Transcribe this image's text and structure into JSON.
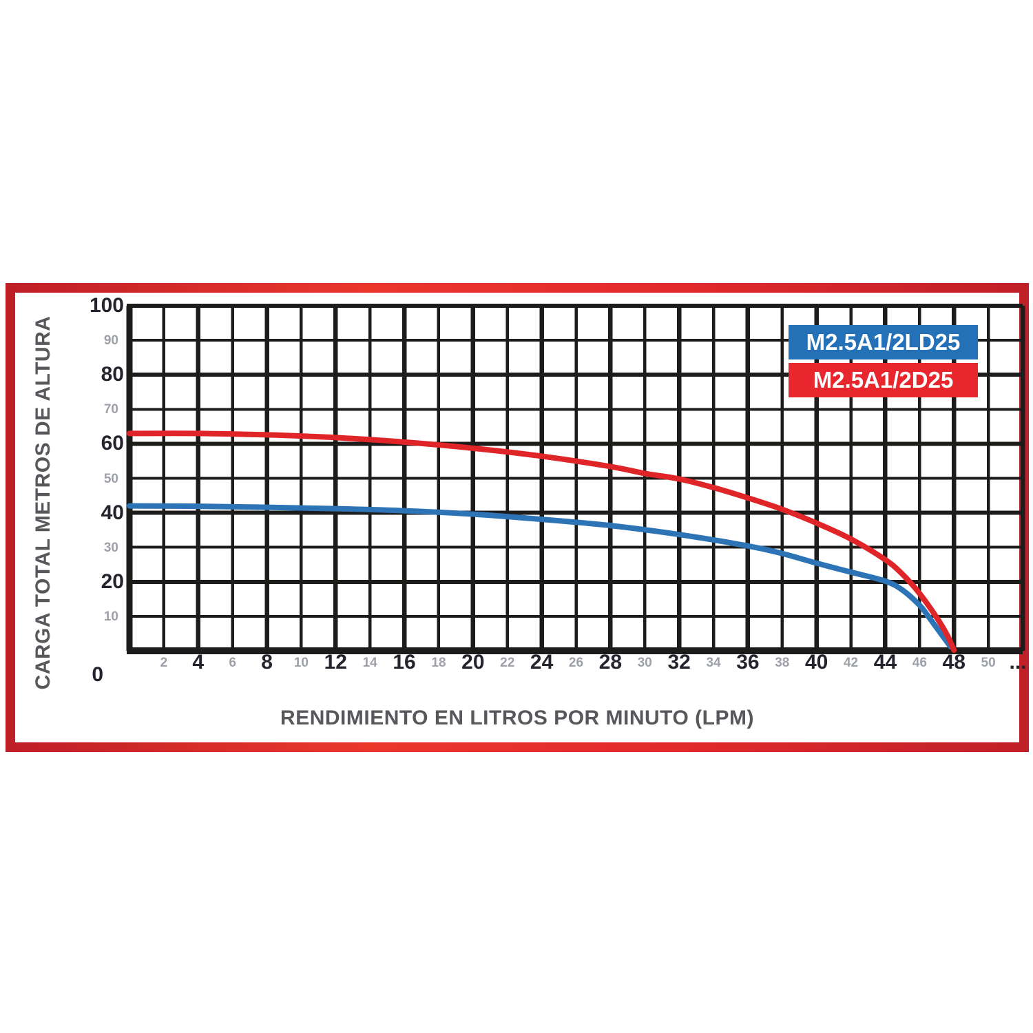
{
  "colors": {
    "frame_border": "#d7282d",
    "grid": "#1d1c1a",
    "major_tick_text": "#24232e",
    "minor_tick_text": "#9da0a8",
    "axis_title_text": "#57585c",
    "legend_text": "#ffffff"
  },
  "y_axis": {
    "origin_label": "0",
    "ticks": [
      {
        "value": 10,
        "major": false
      },
      {
        "value": 20,
        "major": true
      },
      {
        "value": 30,
        "major": false
      },
      {
        "value": 40,
        "major": true
      },
      {
        "value": 50,
        "major": false
      },
      {
        "value": 60,
        "major": true
      },
      {
        "value": 70,
        "major": false
      },
      {
        "value": 80,
        "major": true
      },
      {
        "value": 90,
        "major": false
      },
      {
        "value": 100,
        "major": true
      }
    ]
  },
  "x_axis": {
    "overflow_label": "...",
    "ticks": [
      {
        "value": 2,
        "major": false
      },
      {
        "value": 4,
        "major": true
      },
      {
        "value": 6,
        "major": false
      },
      {
        "value": 8,
        "major": true
      },
      {
        "value": 10,
        "major": false
      },
      {
        "value": 12,
        "major": true
      },
      {
        "value": 14,
        "major": false
      },
      {
        "value": 16,
        "major": true
      },
      {
        "value": 18,
        "major": false
      },
      {
        "value": 20,
        "major": true
      },
      {
        "value": 22,
        "major": false
      },
      {
        "value": 24,
        "major": true
      },
      {
        "value": 26,
        "major": false
      },
      {
        "value": 28,
        "major": true
      },
      {
        "value": 30,
        "major": false
      },
      {
        "value": 32,
        "major": true
      },
      {
        "value": 34,
        "major": false
      },
      {
        "value": 36,
        "major": true
      },
      {
        "value": 38,
        "major": false
      },
      {
        "value": 40,
        "major": true
      },
      {
        "value": 42,
        "major": false
      },
      {
        "value": 44,
        "major": true
      },
      {
        "value": 46,
        "major": false
      },
      {
        "value": 48,
        "major": true
      },
      {
        "value": 50,
        "major": false
      }
    ]
  },
  "chart_data": {
    "type": "line",
    "title": "",
    "xlabel": "RENDIMIENTO EN LITROS POR MINUTO (LPM)",
    "ylabel": "CARGA TOTAL METROS DE ALTURA",
    "xlim": [
      0,
      52
    ],
    "ylim": [
      0,
      100
    ],
    "x_gridline_step": 2,
    "y_gridline_step": 10,
    "x_major_multiple": 4,
    "y_major_multiple": 20,
    "grid": true,
    "legend_position": "top-right",
    "series": [
      {
        "name": "M2.5A1/2LD25",
        "color": "#2d74b6",
        "legend_bg": "#2471b7",
        "points": [
          [
            0,
            42
          ],
          [
            4,
            41.9
          ],
          [
            8,
            41.6
          ],
          [
            12,
            41.2
          ],
          [
            16,
            40.6
          ],
          [
            20,
            39.6
          ],
          [
            24,
            38.1
          ],
          [
            28,
            36.3
          ],
          [
            32,
            33.7
          ],
          [
            36,
            30.4
          ],
          [
            38,
            28.2
          ],
          [
            40,
            25.4
          ],
          [
            42,
            22.8
          ],
          [
            44,
            20.2
          ],
          [
            45,
            17.6
          ],
          [
            46,
            13.2
          ],
          [
            46.5,
            10
          ],
          [
            47,
            6.6
          ],
          [
            47.8,
            1.2
          ]
        ]
      },
      {
        "name": "M2.5A1/2D25",
        "color": "#e02528",
        "legend_bg": "#e8262d",
        "points": [
          [
            0,
            63
          ],
          [
            4,
            63
          ],
          [
            8,
            62.6
          ],
          [
            12,
            61.8
          ],
          [
            16,
            60.5
          ],
          [
            20,
            58.7
          ],
          [
            24,
            56.4
          ],
          [
            28,
            53.4
          ],
          [
            30,
            51.4
          ],
          [
            32,
            49.8
          ],
          [
            34,
            47.3
          ],
          [
            36,
            44.3
          ],
          [
            38,
            41
          ],
          [
            40,
            37
          ],
          [
            42,
            32.4
          ],
          [
            44,
            26.4
          ],
          [
            45,
            22.2
          ],
          [
            46,
            16.6
          ],
          [
            47,
            9.6
          ],
          [
            47.6,
            4.6
          ],
          [
            48,
            0.2
          ]
        ]
      }
    ]
  }
}
